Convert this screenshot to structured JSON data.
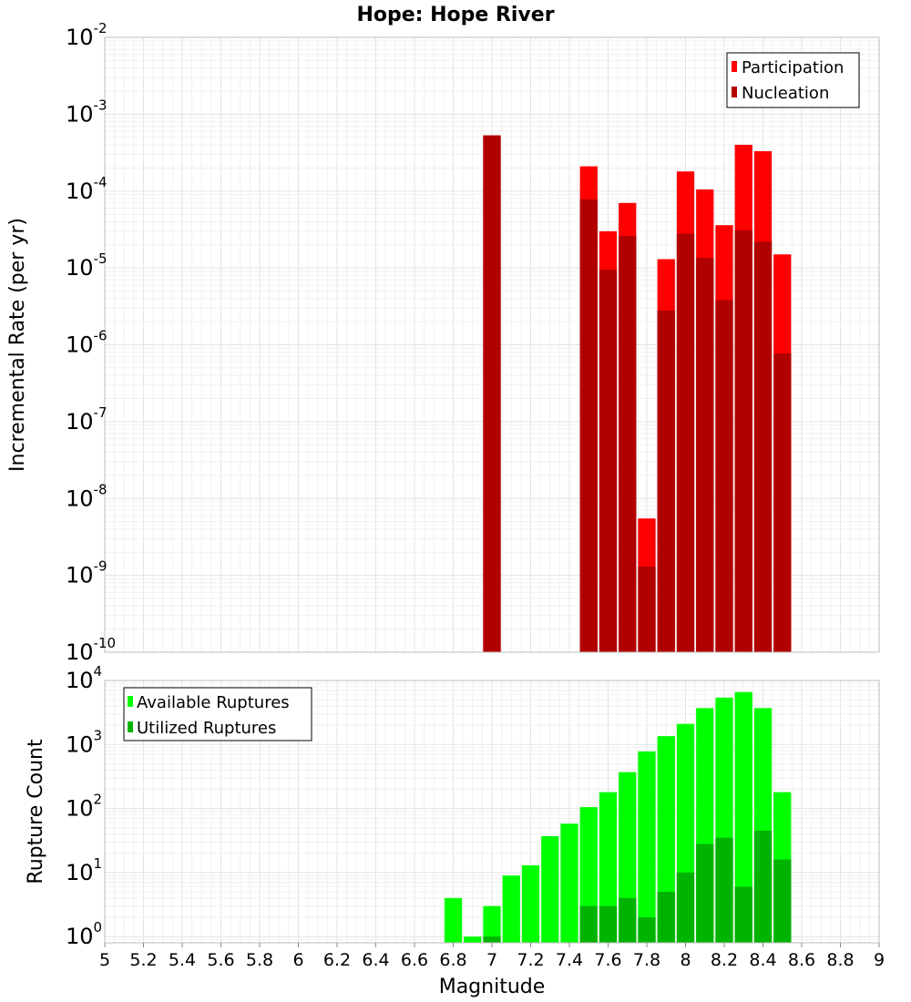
{
  "title": "Hope: Hope River",
  "colors": {
    "participation": "#ff0000",
    "nucleation": "#b10000",
    "available": "#00ff00",
    "utilized": "#00b300"
  },
  "chart_data": [
    {
      "type": "bar",
      "ylabel": "Incremental Rate (per yr)",
      "yscale": "log",
      "ylim": [
        1e-10,
        0.01
      ],
      "xlim": [
        5,
        9
      ],
      "legend": {
        "placement": "top-right",
        "entries": [
          "Participation",
          "Nucleation"
        ]
      },
      "grid": true,
      "bin_width": 0.1,
      "series": [
        {
          "name": "Participation",
          "x": [
            7.0,
            7.5,
            7.6,
            7.7,
            7.8,
            7.9,
            8.0,
            8.1,
            8.2,
            8.3,
            8.4,
            8.5
          ],
          "values": [
            0.00053,
            0.00021,
            3e-05,
            7e-05,
            5.5e-09,
            1.3e-05,
            0.00018,
            0.000105,
            3.6e-05,
            0.0004,
            0.00033,
            1.5e-05
          ]
        },
        {
          "name": "Nucleation",
          "x": [
            7.0,
            7.5,
            7.6,
            7.7,
            7.8,
            7.9,
            8.0,
            8.1,
            8.2,
            8.3,
            8.4,
            8.5
          ],
          "values": [
            0.00053,
            7.8e-05,
            9.5e-06,
            2.6e-05,
            1.3e-09,
            2.8e-06,
            2.8e-05,
            1.35e-05,
            3.8e-06,
            3.1e-05,
            2.2e-05,
            7.7e-07
          ]
        }
      ]
    },
    {
      "type": "bar",
      "ylabel": "Rupture Count",
      "xlabel": "Magnitude",
      "yscale": "log",
      "ylim": [
        0.8,
        10000
      ],
      "xlim": [
        5,
        9
      ],
      "xticks": [
        "5",
        "5.2",
        "5.4",
        "5.6",
        "5.8",
        "6",
        "6.2",
        "6.4",
        "6.6",
        "6.8",
        "7",
        "7.2",
        "7.4",
        "7.6",
        "7.8",
        "8",
        "8.2",
        "8.4",
        "8.6",
        "8.8",
        "9"
      ],
      "legend": {
        "placement": "top-left",
        "entries": [
          "Available Ruptures",
          "Utilized Ruptures"
        ]
      },
      "grid": true,
      "bin_width": 0.1,
      "series": [
        {
          "name": "Available Ruptures",
          "x": [
            6.8,
            6.9,
            7.0,
            7.1,
            7.2,
            7.3,
            7.4,
            7.5,
            7.6,
            7.7,
            7.8,
            7.9,
            8.0,
            8.1,
            8.2,
            8.3,
            8.4,
            8.5
          ],
          "values": [
            4,
            1,
            3,
            9,
            13,
            37,
            58,
            105,
            180,
            370,
            780,
            1350,
            2100,
            3700,
            5400,
            6600,
            3700,
            180
          ]
        },
        {
          "name": "Utilized Ruptures",
          "x": [
            7.0,
            7.5,
            7.6,
            7.7,
            7.8,
            7.9,
            8.0,
            8.1,
            8.2,
            8.3,
            8.4,
            8.5
          ],
          "values": [
            1,
            3,
            3,
            4,
            2,
            5,
            10,
            28,
            35,
            6,
            45,
            16
          ]
        }
      ]
    }
  ]
}
